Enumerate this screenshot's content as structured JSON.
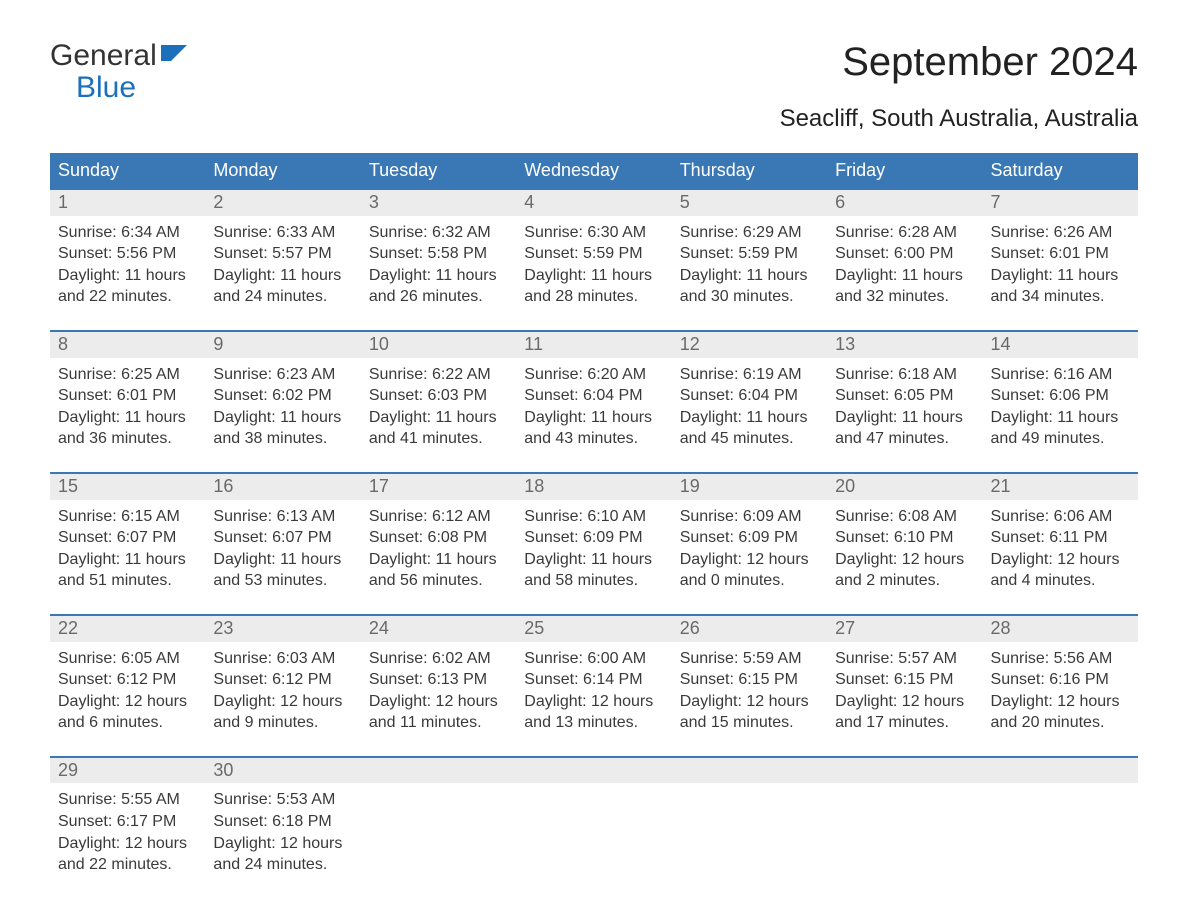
{
  "brand": {
    "line1": "General",
    "line2": "Blue",
    "logo_color": "#1a70bb",
    "text_color": "#333333"
  },
  "title": "September 2024",
  "location": "Seacliff, South Australia, Australia",
  "colors": {
    "header_bg": "#3a78b5",
    "header_text": "#ffffff",
    "daynum_bg": "#ececec",
    "daynum_text": "#6a6a6a",
    "body_text": "#3a3a3a",
    "row_border": "#3a78b5",
    "page_bg": "#ffffff"
  },
  "weekdays": [
    "Sunday",
    "Monday",
    "Tuesday",
    "Wednesday",
    "Thursday",
    "Friday",
    "Saturday"
  ],
  "weeks": [
    [
      {
        "n": "1",
        "sunrise": "Sunrise: 6:34 AM",
        "sunset": "Sunset: 5:56 PM",
        "d1": "Daylight: 11 hours",
        "d2": "and 22 minutes."
      },
      {
        "n": "2",
        "sunrise": "Sunrise: 6:33 AM",
        "sunset": "Sunset: 5:57 PM",
        "d1": "Daylight: 11 hours",
        "d2": "and 24 minutes."
      },
      {
        "n": "3",
        "sunrise": "Sunrise: 6:32 AM",
        "sunset": "Sunset: 5:58 PM",
        "d1": "Daylight: 11 hours",
        "d2": "and 26 minutes."
      },
      {
        "n": "4",
        "sunrise": "Sunrise: 6:30 AM",
        "sunset": "Sunset: 5:59 PM",
        "d1": "Daylight: 11 hours",
        "d2": "and 28 minutes."
      },
      {
        "n": "5",
        "sunrise": "Sunrise: 6:29 AM",
        "sunset": "Sunset: 5:59 PM",
        "d1": "Daylight: 11 hours",
        "d2": "and 30 minutes."
      },
      {
        "n": "6",
        "sunrise": "Sunrise: 6:28 AM",
        "sunset": "Sunset: 6:00 PM",
        "d1": "Daylight: 11 hours",
        "d2": "and 32 minutes."
      },
      {
        "n": "7",
        "sunrise": "Sunrise: 6:26 AM",
        "sunset": "Sunset: 6:01 PM",
        "d1": "Daylight: 11 hours",
        "d2": "and 34 minutes."
      }
    ],
    [
      {
        "n": "8",
        "sunrise": "Sunrise: 6:25 AM",
        "sunset": "Sunset: 6:01 PM",
        "d1": "Daylight: 11 hours",
        "d2": "and 36 minutes."
      },
      {
        "n": "9",
        "sunrise": "Sunrise: 6:23 AM",
        "sunset": "Sunset: 6:02 PM",
        "d1": "Daylight: 11 hours",
        "d2": "and 38 minutes."
      },
      {
        "n": "10",
        "sunrise": "Sunrise: 6:22 AM",
        "sunset": "Sunset: 6:03 PM",
        "d1": "Daylight: 11 hours",
        "d2": "and 41 minutes."
      },
      {
        "n": "11",
        "sunrise": "Sunrise: 6:20 AM",
        "sunset": "Sunset: 6:04 PM",
        "d1": "Daylight: 11 hours",
        "d2": "and 43 minutes."
      },
      {
        "n": "12",
        "sunrise": "Sunrise: 6:19 AM",
        "sunset": "Sunset: 6:04 PM",
        "d1": "Daylight: 11 hours",
        "d2": "and 45 minutes."
      },
      {
        "n": "13",
        "sunrise": "Sunrise: 6:18 AM",
        "sunset": "Sunset: 6:05 PM",
        "d1": "Daylight: 11 hours",
        "d2": "and 47 minutes."
      },
      {
        "n": "14",
        "sunrise": "Sunrise: 6:16 AM",
        "sunset": "Sunset: 6:06 PM",
        "d1": "Daylight: 11 hours",
        "d2": "and 49 minutes."
      }
    ],
    [
      {
        "n": "15",
        "sunrise": "Sunrise: 6:15 AM",
        "sunset": "Sunset: 6:07 PM",
        "d1": "Daylight: 11 hours",
        "d2": "and 51 minutes."
      },
      {
        "n": "16",
        "sunrise": "Sunrise: 6:13 AM",
        "sunset": "Sunset: 6:07 PM",
        "d1": "Daylight: 11 hours",
        "d2": "and 53 minutes."
      },
      {
        "n": "17",
        "sunrise": "Sunrise: 6:12 AM",
        "sunset": "Sunset: 6:08 PM",
        "d1": "Daylight: 11 hours",
        "d2": "and 56 minutes."
      },
      {
        "n": "18",
        "sunrise": "Sunrise: 6:10 AM",
        "sunset": "Sunset: 6:09 PM",
        "d1": "Daylight: 11 hours",
        "d2": "and 58 minutes."
      },
      {
        "n": "19",
        "sunrise": "Sunrise: 6:09 AM",
        "sunset": "Sunset: 6:09 PM",
        "d1": "Daylight: 12 hours",
        "d2": "and 0 minutes."
      },
      {
        "n": "20",
        "sunrise": "Sunrise: 6:08 AM",
        "sunset": "Sunset: 6:10 PM",
        "d1": "Daylight: 12 hours",
        "d2": "and 2 minutes."
      },
      {
        "n": "21",
        "sunrise": "Sunrise: 6:06 AM",
        "sunset": "Sunset: 6:11 PM",
        "d1": "Daylight: 12 hours",
        "d2": "and 4 minutes."
      }
    ],
    [
      {
        "n": "22",
        "sunrise": "Sunrise: 6:05 AM",
        "sunset": "Sunset: 6:12 PM",
        "d1": "Daylight: 12 hours",
        "d2": "and 6 minutes."
      },
      {
        "n": "23",
        "sunrise": "Sunrise: 6:03 AM",
        "sunset": "Sunset: 6:12 PM",
        "d1": "Daylight: 12 hours",
        "d2": "and 9 minutes."
      },
      {
        "n": "24",
        "sunrise": "Sunrise: 6:02 AM",
        "sunset": "Sunset: 6:13 PM",
        "d1": "Daylight: 12 hours",
        "d2": "and 11 minutes."
      },
      {
        "n": "25",
        "sunrise": "Sunrise: 6:00 AM",
        "sunset": "Sunset: 6:14 PM",
        "d1": "Daylight: 12 hours",
        "d2": "and 13 minutes."
      },
      {
        "n": "26",
        "sunrise": "Sunrise: 5:59 AM",
        "sunset": "Sunset: 6:15 PM",
        "d1": "Daylight: 12 hours",
        "d2": "and 15 minutes."
      },
      {
        "n": "27",
        "sunrise": "Sunrise: 5:57 AM",
        "sunset": "Sunset: 6:15 PM",
        "d1": "Daylight: 12 hours",
        "d2": "and 17 minutes."
      },
      {
        "n": "28",
        "sunrise": "Sunrise: 5:56 AM",
        "sunset": "Sunset: 6:16 PM",
        "d1": "Daylight: 12 hours",
        "d2": "and 20 minutes."
      }
    ],
    [
      {
        "n": "29",
        "sunrise": "Sunrise: 5:55 AM",
        "sunset": "Sunset: 6:17 PM",
        "d1": "Daylight: 12 hours",
        "d2": "and 22 minutes."
      },
      {
        "n": "30",
        "sunrise": "Sunrise: 5:53 AM",
        "sunset": "Sunset: 6:18 PM",
        "d1": "Daylight: 12 hours",
        "d2": "and 24 minutes."
      },
      {
        "empty": true
      },
      {
        "empty": true
      },
      {
        "empty": true
      },
      {
        "empty": true
      },
      {
        "empty": true
      }
    ]
  ]
}
